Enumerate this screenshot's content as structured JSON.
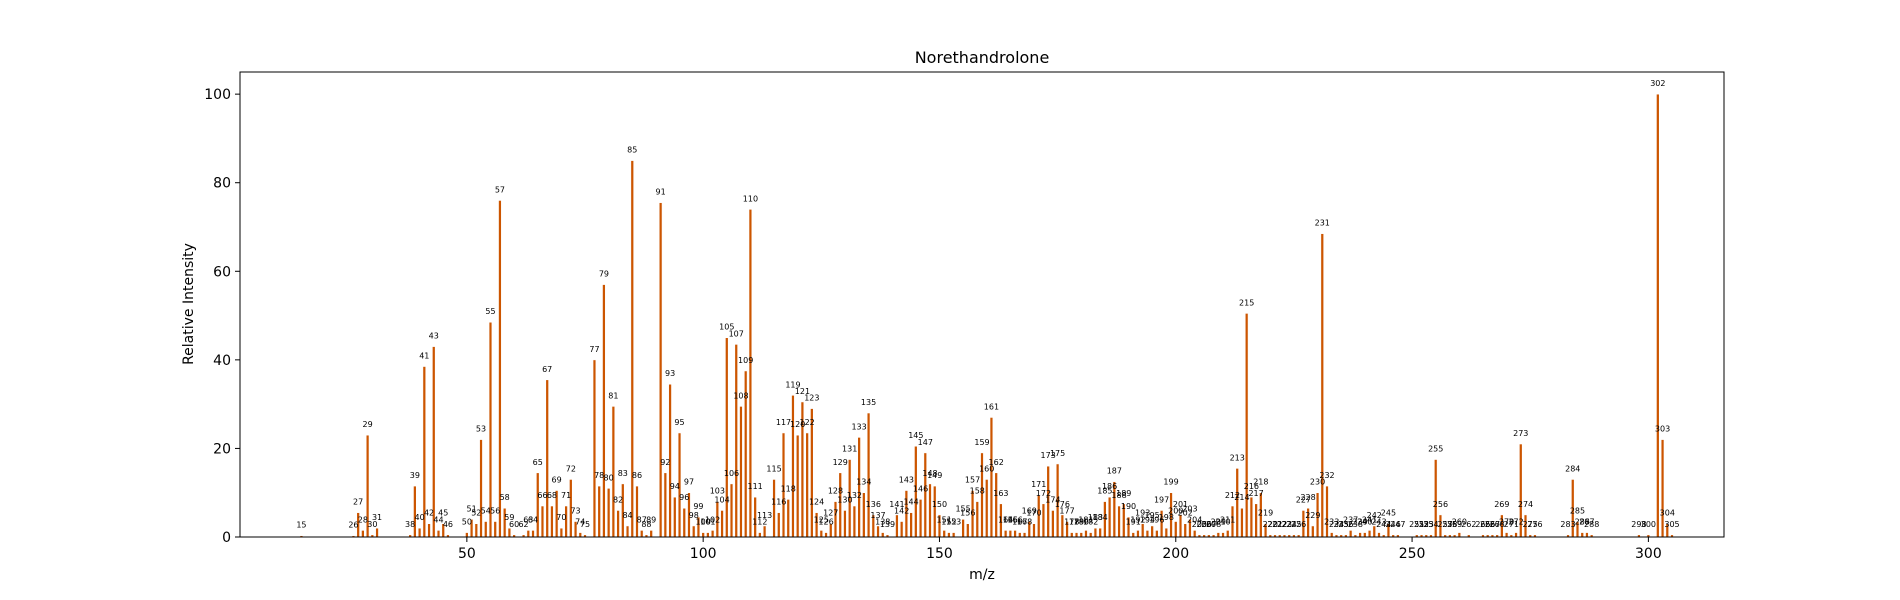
{
  "chart_data": {
    "type": "bar",
    "title": "Norethandrolone",
    "xlabel": "m/z",
    "ylabel": "Relative Intensity",
    "xlim": [
      2,
      316
    ],
    "ylim": [
      0,
      105
    ],
    "xticks": [
      50,
      100,
      150,
      200,
      250,
      300
    ],
    "yticks": [
      0,
      20,
      40,
      60,
      80,
      100
    ],
    "bar_color": "#cc5500",
    "peaks": [
      {
        "x": 15,
        "y": 0.3
      },
      {
        "x": 26,
        "y": 0.3
      },
      {
        "x": 27,
        "y": 5.5
      },
      {
        "x": 28,
        "y": 1.5
      },
      {
        "x": 29,
        "y": 23
      },
      {
        "x": 30,
        "y": 0.5
      },
      {
        "x": 31,
        "y": 2
      },
      {
        "x": 38,
        "y": 0.5
      },
      {
        "x": 39,
        "y": 11.5
      },
      {
        "x": 40,
        "y": 2
      },
      {
        "x": 41,
        "y": 38.5
      },
      {
        "x": 42,
        "y": 3
      },
      {
        "x": 43,
        "y": 43
      },
      {
        "x": 44,
        "y": 1.5
      },
      {
        "x": 45,
        "y": 3
      },
      {
        "x": 46,
        "y": 0.5
      },
      {
        "x": 50,
        "y": 1
      },
      {
        "x": 51,
        "y": 4
      },
      {
        "x": 52,
        "y": 3
      },
      {
        "x": 53,
        "y": 22
      },
      {
        "x": 54,
        "y": 3.5
      },
      {
        "x": 55,
        "y": 48.5
      },
      {
        "x": 56,
        "y": 3.5
      },
      {
        "x": 57,
        "y": 76
      },
      {
        "x": 58,
        "y": 6.5
      },
      {
        "x": 59,
        "y": 2
      },
      {
        "x": 60,
        "y": 0.5
      },
      {
        "x": 62,
        "y": 0.5
      },
      {
        "x": 63,
        "y": 1.5
      },
      {
        "x": 64,
        "y": 1.5
      },
      {
        "x": 65,
        "y": 14.5
      },
      {
        "x": 66,
        "y": 7
      },
      {
        "x": 67,
        "y": 35.5
      },
      {
        "x": 68,
        "y": 7
      },
      {
        "x": 69,
        "y": 10.5
      },
      {
        "x": 70,
        "y": 2
      },
      {
        "x": 71,
        "y": 7
      },
      {
        "x": 72,
        "y": 13
      },
      {
        "x": 73,
        "y": 3.5
      },
      {
        "x": 74,
        "y": 1
      },
      {
        "x": 75,
        "y": 0.5
      },
      {
        "x": 77,
        "y": 40
      },
      {
        "x": 78,
        "y": 11.5
      },
      {
        "x": 79,
        "y": 57
      },
      {
        "x": 80,
        "y": 11
      },
      {
        "x": 81,
        "y": 29.5
      },
      {
        "x": 82,
        "y": 6
      },
      {
        "x": 83,
        "y": 12
      },
      {
        "x": 84,
        "y": 2.5
      },
      {
        "x": 85,
        "y": 85
      },
      {
        "x": 86,
        "y": 11.5
      },
      {
        "x": 87,
        "y": 1.5
      },
      {
        "x": 88,
        "y": 0.5
      },
      {
        "x": 89,
        "y": 1.5
      },
      {
        "x": 91,
        "y": 75.5
      },
      {
        "x": 92,
        "y": 14.5
      },
      {
        "x": 93,
        "y": 34.5
      },
      {
        "x": 94,
        "y": 9
      },
      {
        "x": 95,
        "y": 23.5
      },
      {
        "x": 96,
        "y": 6.5
      },
      {
        "x": 97,
        "y": 10
      },
      {
        "x": 98,
        "y": 2.5
      },
      {
        "x": 99,
        "y": 4.5
      },
      {
        "x": 100,
        "y": 1
      },
      {
        "x": 101,
        "y": 1
      },
      {
        "x": 102,
        "y": 1.5
      },
      {
        "x": 103,
        "y": 8
      },
      {
        "x": 104,
        "y": 6
      },
      {
        "x": 105,
        "y": 45
      },
      {
        "x": 106,
        "y": 12
      },
      {
        "x": 107,
        "y": 43.5
      },
      {
        "x": 108,
        "y": 29.5
      },
      {
        "x": 109,
        "y": 37.5
      },
      {
        "x": 110,
        "y": 74
      },
      {
        "x": 111,
        "y": 9
      },
      {
        "x": 112,
        "y": 1
      },
      {
        "x": 113,
        "y": 2.5
      },
      {
        "x": 115,
        "y": 13
      },
      {
        "x": 116,
        "y": 5.5
      },
      {
        "x": 117,
        "y": 23.5
      },
      {
        "x": 118,
        "y": 8.5
      },
      {
        "x": 119,
        "y": 32
      },
      {
        "x": 120,
        "y": 23
      },
      {
        "x": 121,
        "y": 30.5
      },
      {
        "x": 122,
        "y": 23.5
      },
      {
        "x": 123,
        "y": 29
      },
      {
        "x": 124,
        "y": 5.5
      },
      {
        "x": 125,
        "y": 1.5
      },
      {
        "x": 126,
        "y": 1
      },
      {
        "x": 127,
        "y": 3
      },
      {
        "x": 128,
        "y": 8
      },
      {
        "x": 129,
        "y": 14.5
      },
      {
        "x": 130,
        "y": 6
      },
      {
        "x": 131,
        "y": 17.5
      },
      {
        "x": 132,
        "y": 7
      },
      {
        "x": 133,
        "y": 22.5
      },
      {
        "x": 134,
        "y": 10
      },
      {
        "x": 135,
        "y": 28
      },
      {
        "x": 136,
        "y": 5
      },
      {
        "x": 137,
        "y": 2.5
      },
      {
        "x": 138,
        "y": 1
      },
      {
        "x": 139,
        "y": 0.5
      },
      {
        "x": 141,
        "y": 5
      },
      {
        "x": 142,
        "y": 3.5
      },
      {
        "x": 143,
        "y": 10.5
      },
      {
        "x": 144,
        "y": 5.5
      },
      {
        "x": 145,
        "y": 20.5
      },
      {
        "x": 146,
        "y": 8.5
      },
      {
        "x": 147,
        "y": 19
      },
      {
        "x": 148,
        "y": 12
      },
      {
        "x": 149,
        "y": 11.5
      },
      {
        "x": 150,
        "y": 5
      },
      {
        "x": 151,
        "y": 1.5
      },
      {
        "x": 152,
        "y": 1
      },
      {
        "x": 153,
        "y": 1
      },
      {
        "x": 155,
        "y": 4
      },
      {
        "x": 156,
        "y": 3
      },
      {
        "x": 157,
        "y": 10.5
      },
      {
        "x": 158,
        "y": 8
      },
      {
        "x": 159,
        "y": 19
      },
      {
        "x": 160,
        "y": 13
      },
      {
        "x": 161,
        "y": 27
      },
      {
        "x": 162,
        "y": 14.5
      },
      {
        "x": 163,
        "y": 7.5
      },
      {
        "x": 164,
        "y": 1.5
      },
      {
        "x": 165,
        "y": 1.5
      },
      {
        "x": 166,
        "y": 1.5
      },
      {
        "x": 167,
        "y": 1
      },
      {
        "x": 168,
        "y": 1
      },
      {
        "x": 169,
        "y": 3.5
      },
      {
        "x": 170,
        "y": 3
      },
      {
        "x": 171,
        "y": 9.5
      },
      {
        "x": 172,
        "y": 7.5
      },
      {
        "x": 173,
        "y": 16
      },
      {
        "x": 174,
        "y": 6
      },
      {
        "x": 175,
        "y": 16.5
      },
      {
        "x": 176,
        "y": 5
      },
      {
        "x": 177,
        "y": 3.5
      },
      {
        "x": 178,
        "y": 1
      },
      {
        "x": 179,
        "y": 1
      },
      {
        "x": 180,
        "y": 1
      },
      {
        "x": 181,
        "y": 1.5
      },
      {
        "x": 182,
        "y": 1
      },
      {
        "x": 183,
        "y": 2
      },
      {
        "x": 184,
        "y": 2
      },
      {
        "x": 185,
        "y": 8
      },
      {
        "x": 186,
        "y": 9
      },
      {
        "x": 187,
        "y": 12.5
      },
      {
        "x": 188,
        "y": 7
      },
      {
        "x": 189,
        "y": 7.5
      },
      {
        "x": 190,
        "y": 4.5
      },
      {
        "x": 191,
        "y": 1
      },
      {
        "x": 192,
        "y": 1.5
      },
      {
        "x": 193,
        "y": 3
      },
      {
        "x": 194,
        "y": 1.5
      },
      {
        "x": 195,
        "y": 2.5
      },
      {
        "x": 196,
        "y": 1.5
      },
      {
        "x": 197,
        "y": 6
      },
      {
        "x": 198,
        "y": 2
      },
      {
        "x": 199,
        "y": 10
      },
      {
        "x": 200,
        "y": 3.5
      },
      {
        "x": 201,
        "y": 5
      },
      {
        "x": 202,
        "y": 3
      },
      {
        "x": 203,
        "y": 4
      },
      {
        "x": 204,
        "y": 1.5
      },
      {
        "x": 205,
        "y": 0.5
      },
      {
        "x": 206,
        "y": 0.5
      },
      {
        "x": 207,
        "y": 0.5
      },
      {
        "x": 208,
        "y": 0.5
      },
      {
        "x": 209,
        "y": 1
      },
      {
        "x": 210,
        "y": 1
      },
      {
        "x": 211,
        "y": 1.5
      },
      {
        "x": 212,
        "y": 7
      },
      {
        "x": 213,
        "y": 15.5
      },
      {
        "x": 214,
        "y": 6.5
      },
      {
        "x": 215,
        "y": 50.5
      },
      {
        "x": 216,
        "y": 9
      },
      {
        "x": 217,
        "y": 7.5
      },
      {
        "x": 218,
        "y": 10
      },
      {
        "x": 219,
        "y": 3
      },
      {
        "x": 220,
        "y": 0.5
      },
      {
        "x": 221,
        "y": 0.5
      },
      {
        "x": 222,
        "y": 0.5
      },
      {
        "x": 223,
        "y": 0.5
      },
      {
        "x": 224,
        "y": 0.5
      },
      {
        "x": 225,
        "y": 0.5
      },
      {
        "x": 226,
        "y": 0.5
      },
      {
        "x": 227,
        "y": 6
      },
      {
        "x": 228,
        "y": 6.5
      },
      {
        "x": 229,
        "y": 2.5
      },
      {
        "x": 230,
        "y": 10
      },
      {
        "x": 231,
        "y": 68.5
      },
      {
        "x": 232,
        "y": 11.5
      },
      {
        "x": 233,
        "y": 1
      },
      {
        "x": 234,
        "y": 0.5
      },
      {
        "x": 235,
        "y": 0.5
      },
      {
        "x": 236,
        "y": 0.5
      },
      {
        "x": 237,
        "y": 1.5
      },
      {
        "x": 238,
        "y": 0.5
      },
      {
        "x": 239,
        "y": 1
      },
      {
        "x": 240,
        "y": 1
      },
      {
        "x": 241,
        "y": 1.5
      },
      {
        "x": 242,
        "y": 2.5
      },
      {
        "x": 243,
        "y": 1
      },
      {
        "x": 244,
        "y": 0.5
      },
      {
        "x": 245,
        "y": 3
      },
      {
        "x": 246,
        "y": 0.5
      },
      {
        "x": 247,
        "y": 0.5
      },
      {
        "x": 251,
        "y": 0.5
      },
      {
        "x": 252,
        "y": 0.5
      },
      {
        "x": 253,
        "y": 0.5
      },
      {
        "x": 254,
        "y": 0.5
      },
      {
        "x": 255,
        "y": 17.5
      },
      {
        "x": 256,
        "y": 5
      },
      {
        "x": 257,
        "y": 0.5
      },
      {
        "x": 258,
        "y": 0.5
      },
      {
        "x": 259,
        "y": 0.5
      },
      {
        "x": 260,
        "y": 1
      },
      {
        "x": 262,
        "y": 0.5
      },
      {
        "x": 265,
        "y": 0.5
      },
      {
        "x": 266,
        "y": 0.5
      },
      {
        "x": 267,
        "y": 0.5
      },
      {
        "x": 268,
        "y": 0.5
      },
      {
        "x": 269,
        "y": 5
      },
      {
        "x": 270,
        "y": 1
      },
      {
        "x": 271,
        "y": 0.5
      },
      {
        "x": 272,
        "y": 1
      },
      {
        "x": 273,
        "y": 21
      },
      {
        "x": 274,
        "y": 5
      },
      {
        "x": 275,
        "y": 0.5
      },
      {
        "x": 276,
        "y": 0.5
      },
      {
        "x": 283,
        "y": 0.5
      },
      {
        "x": 284,
        "y": 13
      },
      {
        "x": 285,
        "y": 3.5
      },
      {
        "x": 286,
        "y": 1
      },
      {
        "x": 287,
        "y": 1
      },
      {
        "x": 288,
        "y": 0.5
      },
      {
        "x": 298,
        "y": 0.5
      },
      {
        "x": 300,
        "y": 0.5
      },
      {
        "x": 302,
        "y": 100
      },
      {
        "x": 303,
        "y": 22
      },
      {
        "x": 304,
        "y": 3
      },
      {
        "x": 305,
        "y": 0.5
      }
    ]
  }
}
